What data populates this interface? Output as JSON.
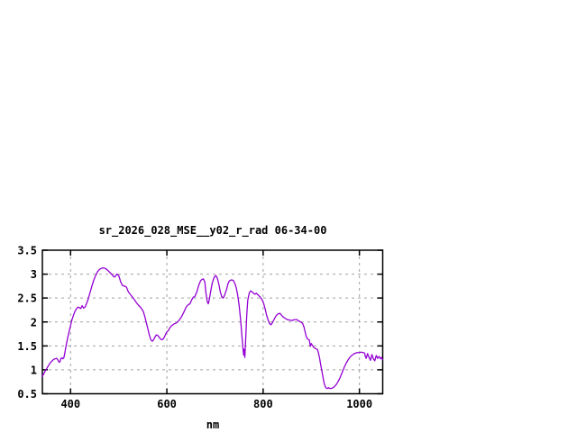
{
  "chart_data": {
    "type": "line",
    "title": "sr_2026_028_MSE__y02_r_rad 06-34-00",
    "xlabel": "nm",
    "ylabel": "",
    "xticks": [
      400,
      600,
      800,
      1000
    ],
    "yticks": [
      0.5,
      1,
      1.5,
      2,
      2.5,
      3,
      3.5
    ],
    "xlim": [
      341.4,
      1048.4
    ],
    "ylim": [
      0.5,
      3.5
    ],
    "grid": true,
    "legend": false,
    "line_color": "#9400d3",
    "grid_color": "#a0a0a0",
    "axis_color": "#000000",
    "background_color": "#ffffff",
    "series": [
      {
        "name": "sr_2026_028_MSE__y02_r_rad",
        "x": [
          341,
          344,
          347,
          350,
          353,
          356,
          359,
          362,
          365,
          368,
          371,
          374,
          376,
          378,
          380,
          382,
          384,
          386,
          388,
          391,
          394,
          397,
          400,
          403,
          406,
          409,
          412,
          415,
          418,
          421,
          424,
          427,
          430,
          433,
          436,
          440,
          444,
          448,
          452,
          456,
          460,
          464,
          468,
          472,
          476,
          479,
          482,
          486,
          489,
          492,
          496,
          500,
          504,
          508,
          512,
          516,
          520,
          526,
          531,
          537,
          541,
          545,
          548,
          551,
          554,
          557,
          560,
          563,
          566,
          568,
          570,
          572,
          575,
          578,
          581,
          584,
          587,
          590,
          593,
          596,
          599,
          603,
          607,
          611,
          615,
          620,
          625,
          630,
          636,
          640,
          644,
          648,
          652,
          655,
          658,
          662,
          666,
          670,
          673,
          676,
          679,
          681,
          684,
          686,
          688,
          691,
          694,
          697,
          700,
          702,
          705,
          708,
          711,
          714,
          717,
          720,
          724,
          727,
          730,
          734,
          738,
          741,
          744,
          747,
          750,
          753,
          756,
          758,
          759.5,
          760.5,
          762,
          764,
          766,
          768,
          771,
          774,
          777,
          780,
          783,
          786,
          790,
          794,
          798,
          801,
          804,
          807,
          810,
          813,
          816,
          819,
          823,
          827,
          831,
          835,
          840,
          845,
          850,
          855,
          860,
          865,
          870,
          874,
          878,
          882,
          885,
          888,
          890,
          893,
          896,
          898,
          900,
          903,
          906,
          910,
          913,
          915,
          917,
          919,
          921,
          923,
          925,
          927,
          929,
          931,
          934,
          936,
          938,
          941,
          944,
          947,
          950,
          953,
          956,
          960,
          964,
          968,
          972,
          976,
          980,
          984,
          988,
          992,
          996,
          1000,
          1004,
          1008,
          1011,
          1012,
          1014,
          1017,
          1020,
          1023,
          1026,
          1029,
          1032,
          1035,
          1038,
          1041,
          1044,
          1046,
          1048
        ],
        "y": [
          0.86,
          0.91,
          0.97,
          1.02,
          1.07,
          1.12,
          1.16,
          1.19,
          1.22,
          1.23,
          1.24,
          1.2,
          1.16,
          1.17,
          1.24,
          1.25,
          1.23,
          1.25,
          1.35,
          1.52,
          1.67,
          1.8,
          1.93,
          2.05,
          2.14,
          2.22,
          2.27,
          2.31,
          2.3,
          2.28,
          2.34,
          2.29,
          2.31,
          2.38,
          2.46,
          2.6,
          2.74,
          2.87,
          2.97,
          3.05,
          3.1,
          3.12,
          3.13,
          3.12,
          3.09,
          3.06,
          3.03,
          2.99,
          2.95,
          2.94,
          3.0,
          2.97,
          2.84,
          2.76,
          2.75,
          2.73,
          2.63,
          2.55,
          2.49,
          2.4,
          2.35,
          2.31,
          2.27,
          2.22,
          2.12,
          2.0,
          1.88,
          1.75,
          1.65,
          1.61,
          1.6,
          1.62,
          1.68,
          1.73,
          1.72,
          1.68,
          1.64,
          1.63,
          1.65,
          1.71,
          1.78,
          1.82,
          1.89,
          1.93,
          1.96,
          1.98,
          2.03,
          2.1,
          2.22,
          2.31,
          2.36,
          2.38,
          2.47,
          2.52,
          2.53,
          2.62,
          2.76,
          2.86,
          2.89,
          2.9,
          2.83,
          2.62,
          2.42,
          2.38,
          2.46,
          2.64,
          2.8,
          2.9,
          2.96,
          2.97,
          2.91,
          2.79,
          2.63,
          2.53,
          2.5,
          2.56,
          2.68,
          2.8,
          2.86,
          2.88,
          2.87,
          2.81,
          2.72,
          2.57,
          2.36,
          2.07,
          1.7,
          1.45,
          1.31,
          1.43,
          1.26,
          1.7,
          2.15,
          2.45,
          2.6,
          2.65,
          2.63,
          2.6,
          2.58,
          2.6,
          2.56,
          2.52,
          2.46,
          2.39,
          2.28,
          2.15,
          2.05,
          1.97,
          1.94,
          1.98,
          2.06,
          2.13,
          2.17,
          2.18,
          2.12,
          2.08,
          2.05,
          2.04,
          2.03,
          2.05,
          2.05,
          2.02,
          2.0,
          1.97,
          1.89,
          1.76,
          1.68,
          1.64,
          1.62,
          1.49,
          1.55,
          1.5,
          1.46,
          1.44,
          1.42,
          1.35,
          1.26,
          1.14,
          1.03,
          0.92,
          0.81,
          0.71,
          0.65,
          0.62,
          0.61,
          0.63,
          0.61,
          0.61,
          0.62,
          0.64,
          0.67,
          0.71,
          0.76,
          0.84,
          0.94,
          1.04,
          1.13,
          1.2,
          1.26,
          1.3,
          1.33,
          1.35,
          1.36,
          1.36,
          1.37,
          1.36,
          1.35,
          1.29,
          1.24,
          1.34,
          1.26,
          1.2,
          1.32,
          1.23,
          1.19,
          1.3,
          1.24,
          1.28,
          1.23,
          1.26,
          1.21
        ]
      }
    ]
  }
}
